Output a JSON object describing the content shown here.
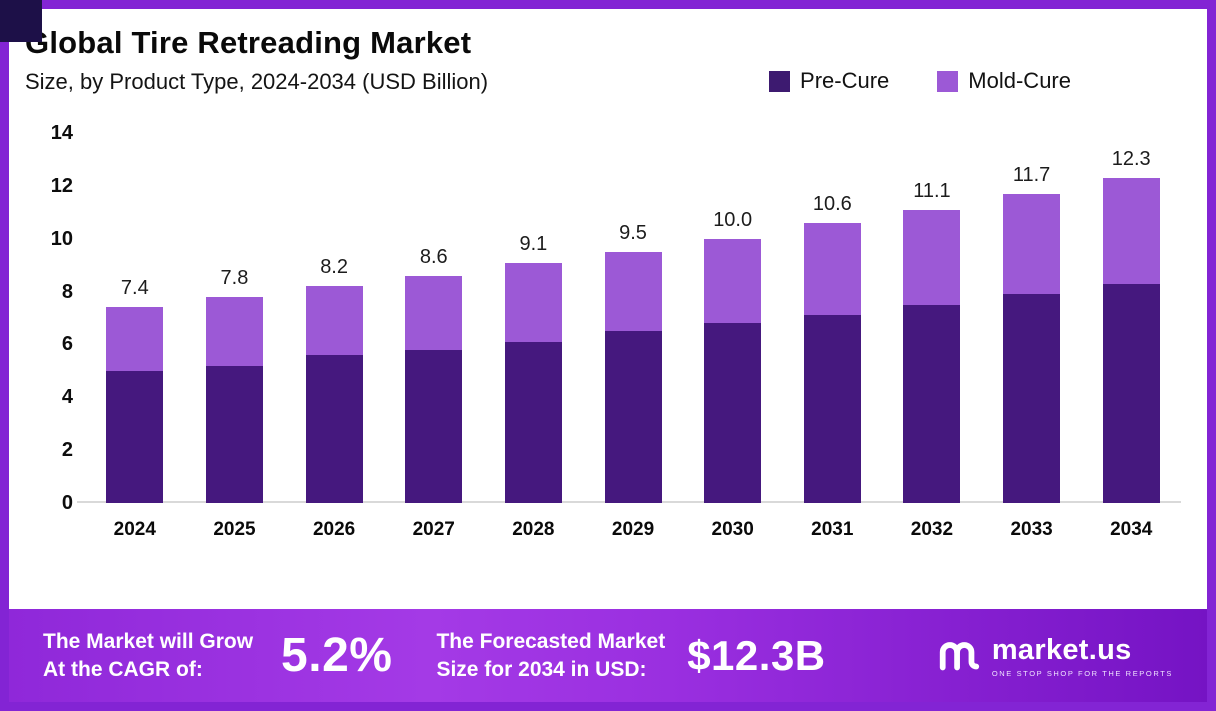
{
  "header": {
    "title": "Global Tire Retreading Market",
    "subtitle": "Size, by Product Type, 2024-2034 (USD Billion)"
  },
  "legend": [
    {
      "label": "Pre-Cure",
      "color": "#3d1a70"
    },
    {
      "label": "Mold-Cure",
      "color": "#9c59d6"
    }
  ],
  "chart_data": {
    "type": "bar",
    "stacked": true,
    "title": "Global Tire Retreading Market Size, by Product Type, 2024-2034 (USD Billion)",
    "categories": [
      "2024",
      "2025",
      "2026",
      "2027",
      "2028",
      "2029",
      "2030",
      "2031",
      "2032",
      "2033",
      "2034"
    ],
    "series": [
      {
        "name": "Pre-Cure",
        "color": "#45187e",
        "values": [
          5.0,
          5.2,
          5.6,
          5.8,
          6.1,
          6.5,
          6.8,
          7.1,
          7.5,
          7.9,
          8.3
        ]
      },
      {
        "name": "Mold-Cure",
        "color": "#9c59d6",
        "values": [
          2.4,
          2.6,
          2.6,
          2.8,
          3.0,
          3.0,
          3.2,
          3.5,
          3.6,
          3.8,
          4.0
        ]
      }
    ],
    "totals": [
      7.4,
      7.8,
      8.2,
      8.6,
      9.1,
      9.5,
      10.0,
      10.6,
      11.1,
      11.7,
      12.3
    ],
    "total_labels": [
      "7.4",
      "7.8",
      "8.2",
      "8.6",
      "9.1",
      "9.5",
      "10.0",
      "10.6",
      "11.1",
      "11.7",
      "12.3"
    ],
    "ylim": [
      0,
      14
    ],
    "yticks": [
      14,
      12,
      10,
      8,
      6,
      4,
      2,
      0
    ],
    "xlabel": "",
    "ylabel": "",
    "grid": false,
    "legend_position": "top-right"
  },
  "footer": {
    "grow_line1": "The Market will Grow",
    "grow_line2": "At the CAGR of:",
    "cagr_value": "5.2%",
    "forecast_line1": "The Forecasted Market",
    "forecast_line2": "Size for 2034 in USD:",
    "forecast_value": "$12.3B",
    "brand": "market.us",
    "brand_tagline": "ONE STOP SHOP FOR THE REPORTS"
  }
}
